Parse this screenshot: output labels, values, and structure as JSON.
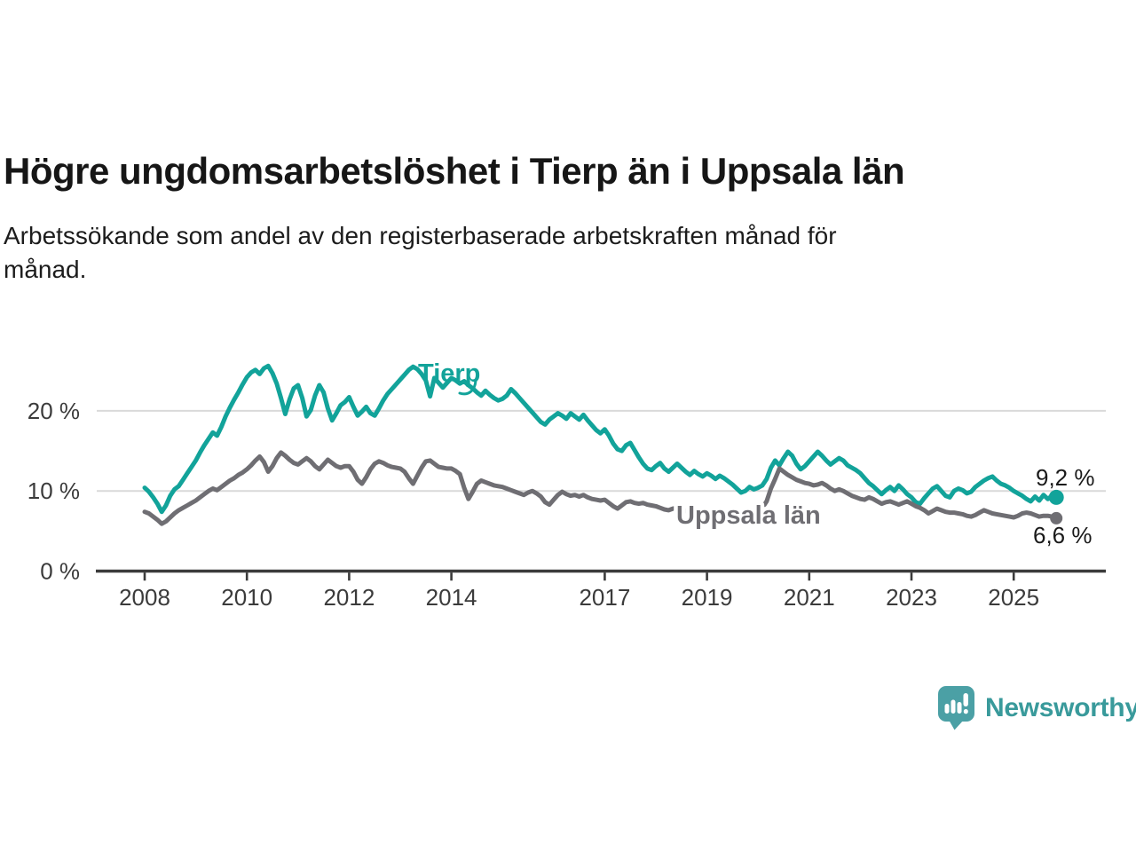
{
  "header": {
    "title": "Högre ungdomsarbetslöshet i Tierp än i Uppsala län",
    "subtitle_lines": {
      "line1": "Arbetssökande som andel av den registerbaserade arbetskraften månad för",
      "line2": "månad."
    }
  },
  "footer": {
    "brand": "Newsworthy",
    "brand_color": "#399a9b",
    "icon_color": "#4ba0a5"
  },
  "chart_data": {
    "type": "line",
    "title": "Högre ungdomsarbetslöshet i Tierp än i Uppsala län",
    "subtitle": "Arbetssökande som andel av den registerbaserade arbetskraften månad för månad.",
    "grid": "horizontal",
    "legend_position": "inline-labels",
    "x_start_year": 2008,
    "x_months_per_point": 1,
    "x_ticks": [
      {
        "label": "2008",
        "year": 2008
      },
      {
        "label": "2010",
        "year": 2010
      },
      {
        "label": "2012",
        "year": 2012
      },
      {
        "label": "2014",
        "year": 2014
      },
      {
        "label": "2017",
        "year": 2017
      },
      {
        "label": "2019",
        "year": 2019
      },
      {
        "label": "2021",
        "year": 2021
      },
      {
        "label": "2023",
        "year": 2023
      },
      {
        "label": "2025",
        "year": 2025
      }
    ],
    "y_ticks": [
      {
        "label": "0 %",
        "value": 0
      },
      {
        "label": "10 %",
        "value": 10
      },
      {
        "label": "20 %",
        "value": 20
      }
    ],
    "y_gridline_values": [
      10,
      20
    ],
    "ylim": [
      0,
      28
    ],
    "axis_color": "#3b3b3b",
    "gridline_color": "#d9d9d9",
    "end_label_color": "#1a1a1a",
    "series": [
      {
        "name": "Tierp",
        "color": "#12a39a",
        "end_label": "9,2 %",
        "end_value": 9.2,
        "end_dot": true,
        "values": [
          10.4,
          9.9,
          9.2,
          8.4,
          7.4,
          8.2,
          9.4,
          10.2,
          10.6,
          11.4,
          12.2,
          13.0,
          13.8,
          14.8,
          15.7,
          16.5,
          17.3,
          16.9,
          18.0,
          19.3,
          20.4,
          21.4,
          22.3,
          23.3,
          24.2,
          24.8,
          25.1,
          24.6,
          25.3,
          25.6,
          24.7,
          23.4,
          21.6,
          19.6,
          21.4,
          22.8,
          23.2,
          21.6,
          19.3,
          20.1,
          21.9,
          23.2,
          22.3,
          20.3,
          18.8,
          19.7,
          20.7,
          21.1,
          21.7,
          20.5,
          19.4,
          19.9,
          20.5,
          19.7,
          19.4,
          20.3,
          21.3,
          22.1,
          22.7,
          23.3,
          23.9,
          24.5,
          25.1,
          25.5,
          25.2,
          24.6,
          23.8,
          21.8,
          24.1,
          23.5,
          22.9,
          23.5,
          24.1,
          23.8,
          23.4,
          23.7,
          23.2,
          22.8,
          22.3,
          21.9,
          22.5,
          22.0,
          21.6,
          21.3,
          21.5,
          21.9,
          22.7,
          22.2,
          21.6,
          21.0,
          20.4,
          19.8,
          19.2,
          18.6,
          18.3,
          18.9,
          19.3,
          19.7,
          19.4,
          19.0,
          19.7,
          19.3,
          18.9,
          19.5,
          18.8,
          18.2,
          17.6,
          17.2,
          17.7,
          16.9,
          15.9,
          15.2,
          15.0,
          15.7,
          16.0,
          15.1,
          14.2,
          13.4,
          12.8,
          12.6,
          13.1,
          13.5,
          12.8,
          12.4,
          12.9,
          13.4,
          12.9,
          12.4,
          12.0,
          12.5,
          12.1,
          11.8,
          12.2,
          11.9,
          11.5,
          11.9,
          11.6,
          11.2,
          10.8,
          10.3,
          9.8,
          10.0,
          10.5,
          10.2,
          10.4,
          10.7,
          11.5,
          12.9,
          13.8,
          13.2,
          14.1,
          14.9,
          14.4,
          13.4,
          12.7,
          13.1,
          13.7,
          14.3,
          14.9,
          14.4,
          13.8,
          13.3,
          13.7,
          14.1,
          13.8,
          13.2,
          12.9,
          12.6,
          12.2,
          11.6,
          11.0,
          10.6,
          10.1,
          9.6,
          10.1,
          10.5,
          10.0,
          10.7,
          10.2,
          9.6,
          9.2,
          8.6,
          8.4,
          9.1,
          9.7,
          10.3,
          10.6,
          10.0,
          9.4,
          9.2,
          10.0,
          10.3,
          10.1,
          9.7,
          9.9,
          10.5,
          10.9,
          11.3,
          11.6,
          11.8,
          11.3,
          10.9,
          10.7,
          10.4,
          10.0,
          9.7,
          9.4,
          9.0,
          8.7,
          9.3,
          8.8,
          9.5,
          9.0,
          9.4,
          9.2
        ]
      },
      {
        "name": "Uppsala län",
        "color": "#6f6e73",
        "end_label": "6,6 %",
        "end_value": 6.6,
        "end_dot": true,
        "values": [
          7.4,
          7.2,
          6.8,
          6.4,
          5.9,
          6.2,
          6.7,
          7.2,
          7.6,
          7.9,
          8.2,
          8.5,
          8.8,
          9.2,
          9.6,
          10.0,
          10.3,
          10.1,
          10.5,
          10.9,
          11.3,
          11.6,
          12.0,
          12.3,
          12.7,
          13.2,
          13.8,
          14.3,
          13.6,
          12.4,
          13.1,
          14.1,
          14.8,
          14.4,
          13.9,
          13.5,
          13.3,
          13.7,
          14.1,
          13.7,
          13.1,
          12.7,
          13.3,
          13.9,
          13.5,
          13.1,
          12.9,
          13.1,
          13.1,
          12.4,
          11.4,
          10.9,
          11.7,
          12.7,
          13.4,
          13.7,
          13.5,
          13.2,
          13.0,
          12.9,
          12.8,
          12.4,
          11.6,
          10.9,
          11.9,
          12.9,
          13.7,
          13.8,
          13.4,
          13.0,
          12.9,
          12.8,
          12.8,
          12.5,
          12.1,
          10.4,
          9.0,
          9.9,
          10.9,
          11.3,
          11.1,
          10.9,
          10.7,
          10.6,
          10.5,
          10.3,
          10.1,
          9.9,
          9.7,
          9.5,
          9.8,
          10.0,
          9.7,
          9.3,
          8.6,
          8.3,
          8.9,
          9.5,
          9.9,
          9.6,
          9.4,
          9.5,
          9.3,
          9.5,
          9.2,
          9.0,
          8.9,
          8.8,
          8.9,
          8.5,
          8.1,
          7.8,
          8.2,
          8.6,
          8.7,
          8.5,
          8.4,
          8.5,
          8.3,
          8.2,
          8.1,
          7.9,
          7.7,
          7.6,
          7.8,
          7.9,
          7.7,
          7.5,
          7.4,
          7.5,
          7.4,
          7.3,
          7.3,
          7.2,
          7.1,
          7.0,
          7.1,
          7.2,
          7.1,
          7.0,
          6.9,
          7.0,
          7.1,
          7.3,
          7.5,
          7.9,
          8.7,
          10.3,
          11.5,
          12.8,
          12.4,
          12.0,
          11.7,
          11.4,
          11.2,
          11.0,
          10.9,
          10.7,
          10.8,
          11.0,
          10.7,
          10.3,
          10.0,
          10.2,
          10.0,
          9.7,
          9.4,
          9.2,
          9.0,
          8.9,
          9.2,
          9.0,
          8.7,
          8.4,
          8.6,
          8.7,
          8.5,
          8.3,
          8.5,
          8.7,
          8.4,
          8.1,
          7.9,
          7.6,
          7.2,
          7.5,
          7.8,
          7.6,
          7.4,
          7.3,
          7.3,
          7.2,
          7.1,
          6.9,
          6.8,
          7.0,
          7.3,
          7.6,
          7.4,
          7.2,
          7.1,
          7.0,
          6.9,
          6.8,
          6.7,
          6.9,
          7.2,
          7.3,
          7.2,
          7.0,
          6.8,
          6.9,
          6.9,
          6.8,
          6.6
        ]
      }
    ]
  }
}
